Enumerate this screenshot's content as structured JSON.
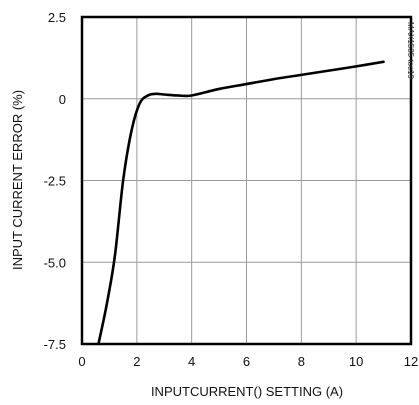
{
  "chart_data": {
    "type": "line",
    "xlabel": "INPUTCURRENT() SETTING (A)",
    "ylabel": "INPUT CURRENT ERROR (%)",
    "side_note": "MAX1535 toc19",
    "xlim": [
      0,
      12
    ],
    "ylim": [
      -7.5,
      2.5
    ],
    "x_ticks": [
      0,
      2,
      4,
      6,
      8,
      10,
      12
    ],
    "x_tick_labels": [
      "0",
      "2",
      "4",
      "6",
      "8",
      "10",
      "12"
    ],
    "y_ticks": [
      2.5,
      0,
      -2.5,
      -5.0,
      -7.5
    ],
    "y_tick_labels": [
      "2.5",
      "0",
      "-2.5",
      "-5.0",
      "-7.5"
    ],
    "grid": true,
    "series": [
      {
        "color": "#000000",
        "x": [
          0.6,
          0.9,
          1.2,
          1.5,
          1.8,
          2.1,
          2.4,
          2.7,
          3.0,
          3.5,
          4.0,
          5.0,
          6.0,
          7.0,
          8.0,
          9.0,
          10.0,
          11.0
        ],
        "y": [
          -7.5,
          -6.3,
          -4.8,
          -2.5,
          -1.0,
          -0.15,
          0.1,
          0.15,
          0.13,
          0.1,
          0.1,
          0.3,
          0.45,
          0.6,
          0.73,
          0.86,
          0.99,
          1.13
        ]
      }
    ]
  }
}
